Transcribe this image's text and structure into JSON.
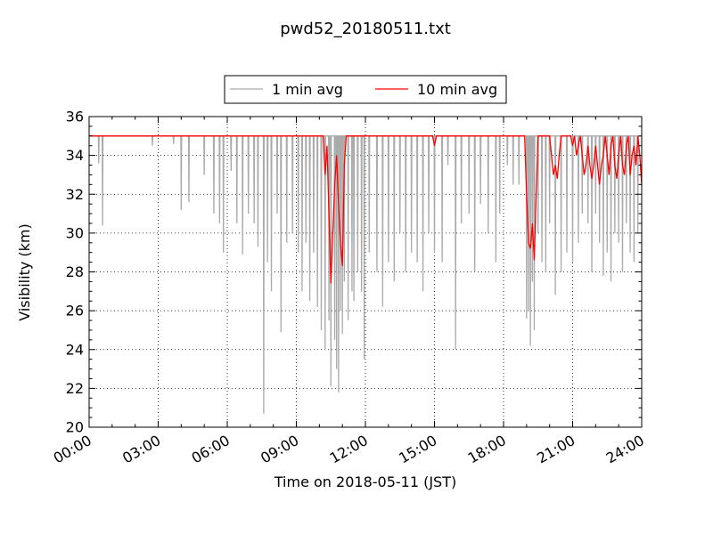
{
  "chart_data": {
    "type": "line",
    "title": "pwd52_20180511.txt",
    "xlabel": "Time on 2018-05-11 (JST)",
    "ylabel": "Visibility (km)",
    "xlim": [
      "00:00",
      "24:00"
    ],
    "ylim": [
      20,
      36
    ],
    "x_ticks": [
      "00:00",
      "03:00",
      "06:00",
      "09:00",
      "12:00",
      "15:00",
      "18:00",
      "21:00",
      "24:00"
    ],
    "y_ticks": [
      "20",
      "22",
      "24",
      "26",
      "28",
      "30",
      "32",
      "34",
      "36"
    ],
    "grid": true,
    "legend_position": "top-center",
    "legend_ncol": 2,
    "series": [
      {
        "name": "1 min avg",
        "color": "#aaaaaa",
        "baseline": 35,
        "dips": [
          [
            "00:25",
            33.6
          ],
          [
            "00:35",
            30.4
          ],
          [
            "02:45",
            34.5
          ],
          [
            "03:40",
            34.6
          ],
          [
            "04:00",
            31.2
          ],
          [
            "04:20",
            31.6
          ],
          [
            "05:00",
            33.0
          ],
          [
            "05:25",
            31.0
          ],
          [
            "05:40",
            30.5
          ],
          [
            "05:50",
            29.0
          ],
          [
            "06:10",
            33.2
          ],
          [
            "06:25",
            30.5
          ],
          [
            "06:40",
            28.9
          ],
          [
            "06:55",
            31.0
          ],
          [
            "07:10",
            30.5
          ],
          [
            "07:20",
            29.3
          ],
          [
            "07:35",
            20.7
          ],
          [
            "07:45",
            28.5
          ],
          [
            "07:55",
            27.0
          ],
          [
            "08:10",
            31.0
          ],
          [
            "08:20",
            24.9
          ],
          [
            "08:35",
            29.5
          ],
          [
            "08:50",
            30.0
          ],
          [
            "09:05",
            29.0
          ],
          [
            "09:15",
            27.0
          ],
          [
            "09:25",
            29.5
          ],
          [
            "09:35",
            26.5
          ],
          [
            "09:45",
            29.0
          ],
          [
            "09:55",
            26.2
          ],
          [
            "10:05",
            25.0
          ],
          [
            "10:15",
            24.0
          ],
          [
            "10:25",
            25.5
          ],
          [
            "10:30",
            22.1
          ],
          [
            "10:40",
            24.5
          ],
          [
            "10:45",
            23.0
          ],
          [
            "10:50",
            21.8
          ],
          [
            "10:55",
            26.0
          ],
          [
            "11:00",
            24.8
          ],
          [
            "11:05",
            27.5
          ],
          [
            "11:15",
            25.5
          ],
          [
            "11:25",
            27.0
          ],
          [
            "11:30",
            26.5
          ],
          [
            "11:40",
            28.0
          ],
          [
            "11:50",
            27.0
          ],
          [
            "11:57",
            23.5
          ],
          [
            "12:10",
            29.0
          ],
          [
            "12:30",
            28.0
          ],
          [
            "12:45",
            26.2
          ],
          [
            "13:00",
            28.5
          ],
          [
            "13:15",
            27.5
          ],
          [
            "13:30",
            30.0
          ],
          [
            "13:45",
            28.0
          ],
          [
            "14:00",
            29.0
          ],
          [
            "14:15",
            28.5
          ],
          [
            "14:30",
            27.0
          ],
          [
            "14:45",
            30.0
          ],
          [
            "15:00",
            29.0
          ],
          [
            "15:20",
            28.5
          ],
          [
            "15:35",
            33.5
          ],
          [
            "15:55",
            24.0
          ],
          [
            "16:10",
            30.5
          ],
          [
            "16:30",
            31.0
          ],
          [
            "16:45",
            28.0
          ],
          [
            "17:00",
            31.5
          ],
          [
            "17:20",
            30.0
          ],
          [
            "17:40",
            28.5
          ],
          [
            "17:50",
            31.0
          ],
          [
            "18:10",
            33.5
          ],
          [
            "18:25",
            32.5
          ],
          [
            "18:40",
            32.5
          ],
          [
            "19:00",
            25.6
          ],
          [
            "19:05",
            26.0
          ],
          [
            "19:10",
            24.2
          ],
          [
            "19:15",
            27.5
          ],
          [
            "19:20",
            25.0
          ],
          [
            "19:30",
            30.0
          ],
          [
            "19:40",
            28.5
          ],
          [
            "19:50",
            28.0
          ],
          [
            "20:00",
            30.5
          ],
          [
            "20:15",
            26.8
          ],
          [
            "20:30",
            28.0
          ],
          [
            "20:45",
            29.0
          ],
          [
            "21:00",
            28.5
          ],
          [
            "21:15",
            29.5
          ],
          [
            "21:25",
            31.0
          ],
          [
            "21:40",
            30.5
          ],
          [
            "21:50",
            28.0
          ],
          [
            "22:00",
            31.0
          ],
          [
            "22:10",
            29.5
          ],
          [
            "22:20",
            27.8
          ],
          [
            "22:30",
            29.0
          ],
          [
            "22:40",
            27.5
          ],
          [
            "22:50",
            30.0
          ],
          [
            "23:00",
            29.5
          ],
          [
            "23:10",
            28.0
          ],
          [
            "23:20",
            30.5
          ],
          [
            "23:30",
            29.0
          ],
          [
            "23:40",
            28.5
          ],
          [
            "23:50",
            30.0
          ]
        ]
      },
      {
        "name": "10 min avg",
        "color": "#ff0000",
        "points": [
          [
            "00:00",
            35.0
          ],
          [
            "10:10",
            35.0
          ],
          [
            "10:15",
            33.0
          ],
          [
            "10:20",
            34.5
          ],
          [
            "10:25",
            31.0
          ],
          [
            "10:30",
            27.4
          ],
          [
            "10:35",
            30.0
          ],
          [
            "10:40",
            32.5
          ],
          [
            "10:45",
            34.0
          ],
          [
            "10:50",
            31.5
          ],
          [
            "10:55",
            29.5
          ],
          [
            "11:00",
            28.3
          ],
          [
            "11:05",
            33.5
          ],
          [
            "11:10",
            35.0
          ],
          [
            "14:55",
            35.0
          ],
          [
            "15:00",
            34.5
          ],
          [
            "15:05",
            35.0
          ],
          [
            "18:55",
            35.0
          ],
          [
            "19:00",
            32.0
          ],
          [
            "19:05",
            29.5
          ],
          [
            "19:10",
            29.2
          ],
          [
            "19:15",
            30.5
          ],
          [
            "19:20",
            28.6
          ],
          [
            "19:25",
            32.0
          ],
          [
            "19:30",
            35.0
          ],
          [
            "20:00",
            35.0
          ],
          [
            "20:05",
            34.0
          ],
          [
            "20:10",
            33.0
          ],
          [
            "20:15",
            33.5
          ],
          [
            "20:20",
            32.8
          ],
          [
            "20:25",
            34.0
          ],
          [
            "20:30",
            35.0
          ],
          [
            "20:55",
            35.0
          ],
          [
            "21:00",
            34.5
          ],
          [
            "21:05",
            35.0
          ],
          [
            "21:10",
            34.0
          ],
          [
            "21:15",
            34.5
          ],
          [
            "21:20",
            35.0
          ],
          [
            "21:25",
            34.0
          ],
          [
            "21:30",
            33.0
          ],
          [
            "21:35",
            33.5
          ],
          [
            "21:40",
            34.5
          ],
          [
            "21:45",
            33.5
          ],
          [
            "21:50",
            32.8
          ],
          [
            "21:55",
            33.5
          ],
          [
            "22:00",
            34.5
          ],
          [
            "22:05",
            33.5
          ],
          [
            "22:10",
            32.5
          ],
          [
            "22:15",
            33.5
          ],
          [
            "22:20",
            34.0
          ],
          [
            "22:25",
            35.0
          ],
          [
            "22:30",
            34.0
          ],
          [
            "22:35",
            33.0
          ],
          [
            "22:40",
            34.5
          ],
          [
            "22:45",
            35.0
          ],
          [
            "22:50",
            33.5
          ],
          [
            "22:55",
            32.8
          ],
          [
            "23:00",
            34.0
          ],
          [
            "23:05",
            35.0
          ],
          [
            "23:10",
            33.5
          ],
          [
            "23:15",
            33.0
          ],
          [
            "23:20",
            34.5
          ],
          [
            "23:25",
            35.0
          ],
          [
            "23:30",
            33.0
          ],
          [
            "23:35",
            34.0
          ],
          [
            "23:40",
            34.5
          ],
          [
            "23:45",
            33.5
          ],
          [
            "23:50",
            35.0
          ],
          [
            "23:55",
            34.0
          ],
          [
            "24:00",
            32.5
          ]
        ]
      }
    ]
  }
}
